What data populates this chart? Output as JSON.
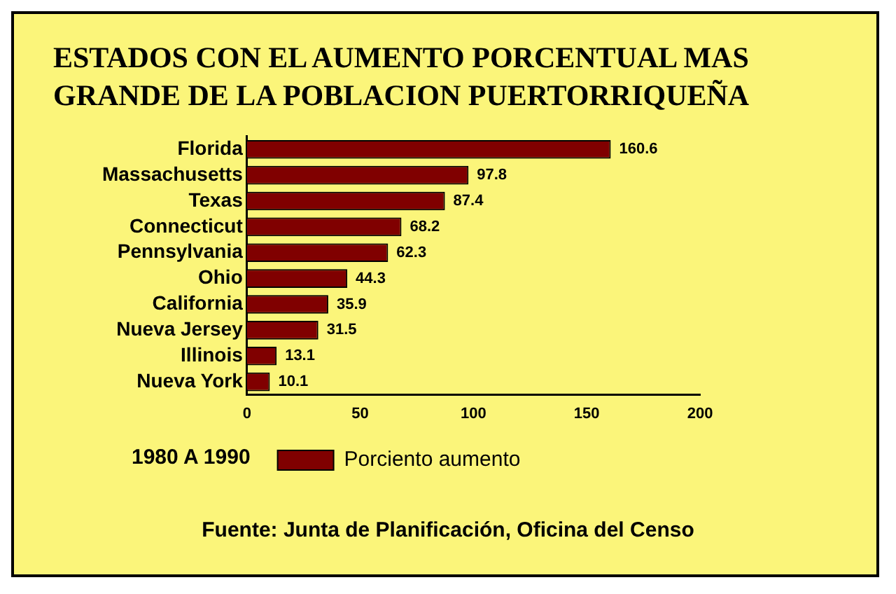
{
  "chart_data": {
    "type": "bar",
    "orientation": "horizontal",
    "title": "ESTADOS CON EL AUMENTO PORCENTUAL MAS GRANDE DE LA POBLACION PUERTORRIQUEÑA",
    "categories": [
      "Florida",
      "Massachusetts",
      "Texas",
      "Connecticut",
      "Pennsylvania",
      "Ohio",
      "California",
      "Nueva Jersey",
      "Illinois",
      "Nueva York"
    ],
    "series": [
      {
        "name": "Porciento aumento",
        "color": "#800000",
        "values": [
          160.6,
          97.8,
          87.4,
          68.2,
          62.3,
          44.3,
          35.9,
          31.5,
          13.1,
          10.1
        ]
      }
    ],
    "xlim": [
      0,
      200
    ],
    "xticks": [
      0,
      50,
      100,
      150,
      200
    ],
    "grid": false,
    "legend": "bottom",
    "data_labels": true,
    "annotations": [
      "1980 A 1990",
      "Fuente: Junta de Planificación, Oficina del Censo"
    ]
  }
}
